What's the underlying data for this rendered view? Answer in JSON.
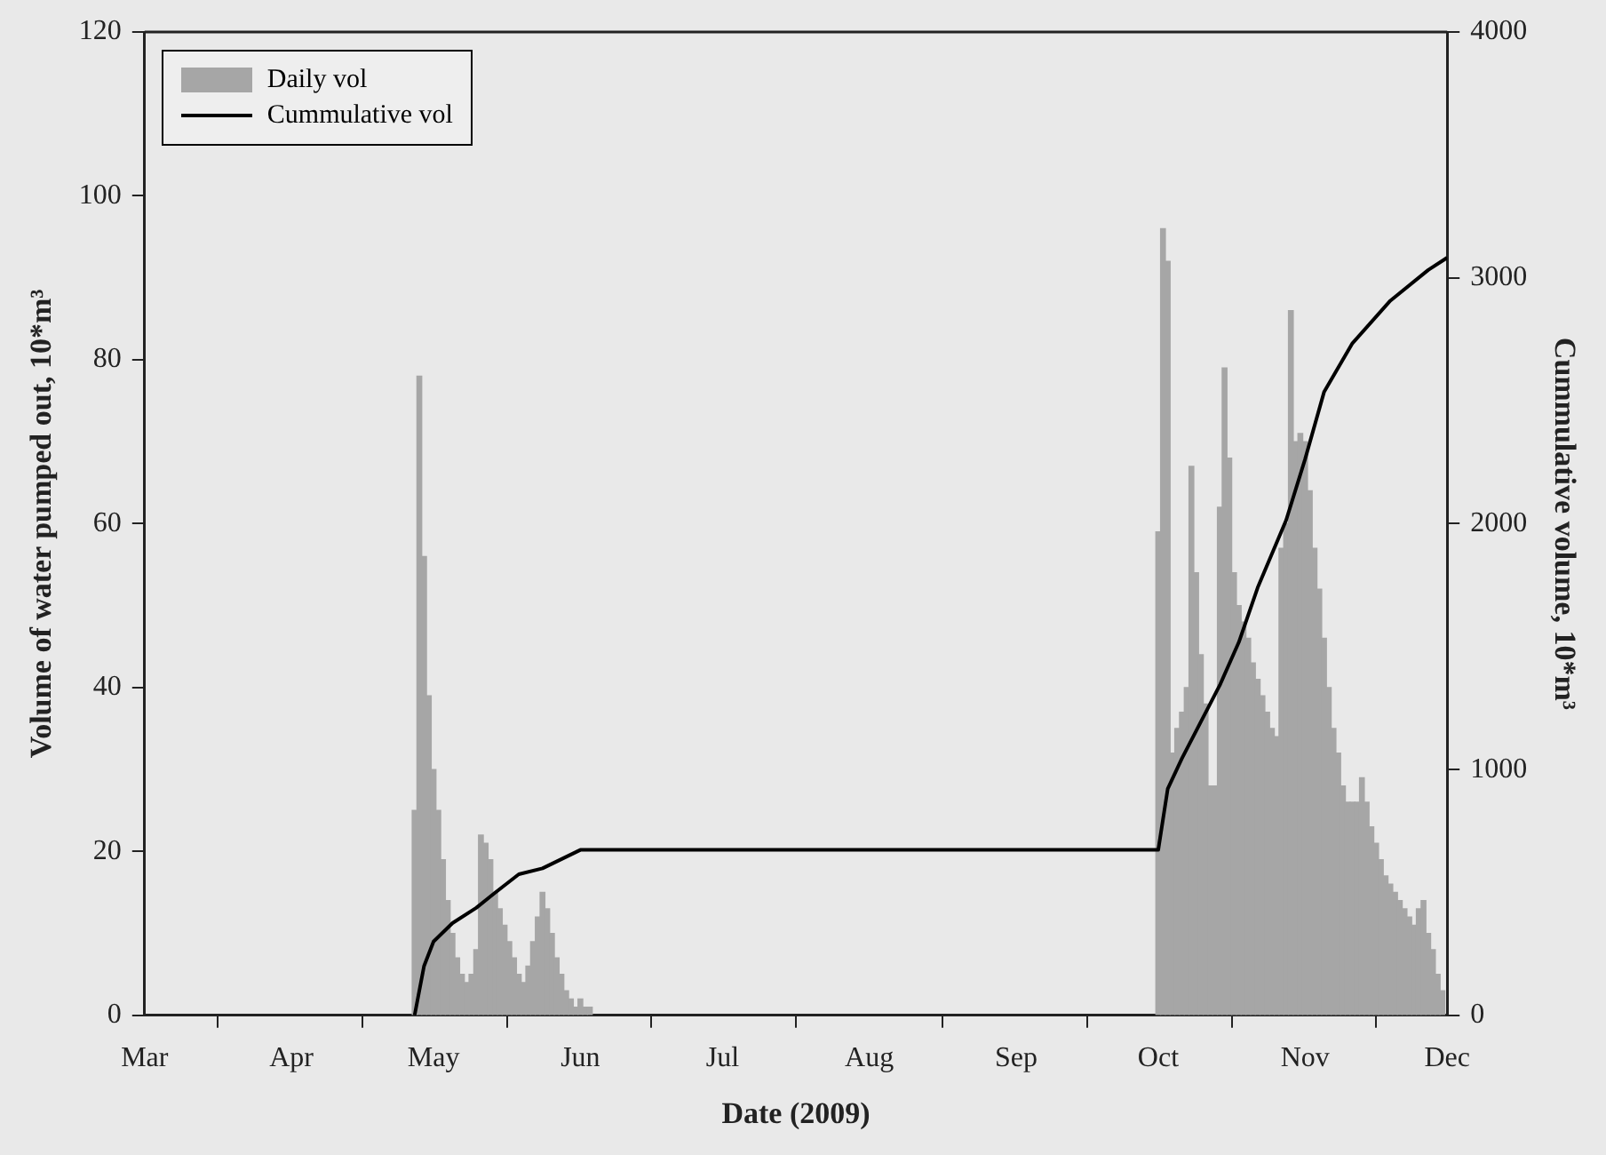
{
  "chart_data": {
    "type": "bar",
    "xlabel": "Date (2009)",
    "ylabel": "Volume of water pumped out, 10*m³",
    "y2label": "Cummulative volume, 10*m³",
    "xlim": [
      "2009-03-01",
      "2009-12-01"
    ],
    "xticks": [
      {
        "value": "2009-03-01",
        "label": "Mar"
      },
      {
        "value": "2009-04-01",
        "label": "Apr"
      },
      {
        "value": "2009-05-01",
        "label": "May"
      },
      {
        "value": "2009-06-01",
        "label": "Jun"
      },
      {
        "value": "2009-07-01",
        "label": "Jul"
      },
      {
        "value": "2009-08-01",
        "label": "Aug"
      },
      {
        "value": "2009-09-01",
        "label": "Sep"
      },
      {
        "value": "2009-10-01",
        "label": "Oct"
      },
      {
        "value": "2009-11-01",
        "label": "Nov"
      },
      {
        "value": "2009-12-01",
        "label": "Dec"
      }
    ],
    "ylim": [
      0,
      120
    ],
    "yticks": [
      0,
      20,
      40,
      60,
      80,
      100,
      120
    ],
    "y2lim": [
      0,
      4000
    ],
    "y2ticks": [
      0,
      1000,
      2000,
      3000,
      4000
    ],
    "grid": false,
    "legend": "top left",
    "marker": "none",
    "line_style": "solid",
    "series": [
      {
        "name": "Daily vol",
        "color": "#a6a6a6",
        "x": [
          "2009-04-27",
          "2009-04-28",
          "2009-04-29",
          "2009-04-30",
          "2009-05-01",
          "2009-05-02",
          "2009-05-03",
          "2009-05-04",
          "2009-05-05",
          "2009-05-06",
          "2009-05-07",
          "2009-05-08",
          "2009-05-09",
          "2009-05-10",
          "2009-05-11",
          "2009-05-12",
          "2009-05-13",
          "2009-05-14",
          "2009-05-15",
          "2009-05-16",
          "2009-05-17",
          "2009-05-18",
          "2009-05-19",
          "2009-05-20",
          "2009-05-21",
          "2009-05-22",
          "2009-05-23",
          "2009-05-24",
          "2009-05-25",
          "2009-05-26",
          "2009-05-27",
          "2009-05-28",
          "2009-05-29",
          "2009-05-30",
          "2009-05-31",
          "2009-06-01",
          "2009-06-02",
          "2009-06-03",
          "2009-10-01",
          "2009-10-02",
          "2009-10-03",
          "2009-10-04",
          "2009-10-05",
          "2009-10-06",
          "2009-10-07",
          "2009-10-08",
          "2009-10-09",
          "2009-10-10",
          "2009-10-11",
          "2009-10-12",
          "2009-10-13",
          "2009-10-14",
          "2009-10-15",
          "2009-10-16",
          "2009-10-17",
          "2009-10-18",
          "2009-10-19",
          "2009-10-20",
          "2009-10-21",
          "2009-10-22",
          "2009-10-23",
          "2009-10-24",
          "2009-10-25",
          "2009-10-26",
          "2009-10-27",
          "2009-10-28",
          "2009-10-29",
          "2009-10-30",
          "2009-10-31",
          "2009-11-01",
          "2009-11-02",
          "2009-11-03",
          "2009-11-04",
          "2009-11-05",
          "2009-11-06",
          "2009-11-07",
          "2009-11-08",
          "2009-11-09",
          "2009-11-10",
          "2009-11-11",
          "2009-11-12",
          "2009-11-13",
          "2009-11-14",
          "2009-11-15",
          "2009-11-16",
          "2009-11-17",
          "2009-11-18",
          "2009-11-19",
          "2009-11-20",
          "2009-11-21",
          "2009-11-22",
          "2009-11-23",
          "2009-11-24",
          "2009-11-25",
          "2009-11-26",
          "2009-11-27",
          "2009-11-28",
          "2009-11-29",
          "2009-11-30"
        ],
        "values": [
          25,
          78,
          56,
          39,
          30,
          25,
          19,
          14,
          10,
          7,
          5,
          4,
          5,
          8,
          22,
          21,
          19,
          15,
          13,
          11,
          9,
          7,
          5,
          4,
          6,
          9,
          12,
          15,
          13,
          10,
          7,
          5,
          3,
          2,
          1,
          2,
          1,
          1,
          59,
          96,
          92,
          32,
          35,
          37,
          40,
          67,
          54,
          44,
          38,
          28,
          28,
          62,
          79,
          68,
          54,
          50,
          48,
          46,
          43,
          41,
          39,
          37,
          35,
          34,
          57,
          60,
          86,
          70,
          71,
          70,
          64,
          57,
          52,
          46,
          40,
          35,
          32,
          28,
          26,
          26,
          26,
          29,
          26,
          23,
          21,
          19,
          17,
          16,
          15,
          14,
          13,
          12,
          11,
          13,
          14,
          10,
          8,
          5,
          3
        ]
      },
      {
        "name": "Cummulative vol",
        "type": "line",
        "axis": "y2",
        "color": "#000000",
        "x": [
          "2009-04-27",
          "2009-04-29",
          "2009-05-01",
          "2009-05-05",
          "2009-05-10",
          "2009-05-14",
          "2009-05-19",
          "2009-05-24",
          "2009-06-01",
          "2009-10-01",
          "2009-10-03",
          "2009-10-06",
          "2009-10-14",
          "2009-10-18",
          "2009-10-22",
          "2009-10-28",
          "2009-11-01",
          "2009-11-05",
          "2009-11-11",
          "2009-11-19",
          "2009-11-27",
          "2009-12-01"
        ],
        "values": [
          0,
          201,
          300,
          375,
          437,
          499,
          574,
          598,
          673,
          673,
          921,
          1045,
          1343,
          1517,
          1740,
          2014,
          2262,
          2535,
          2734,
          2907,
          3032,
          3082
        ]
      }
    ]
  }
}
